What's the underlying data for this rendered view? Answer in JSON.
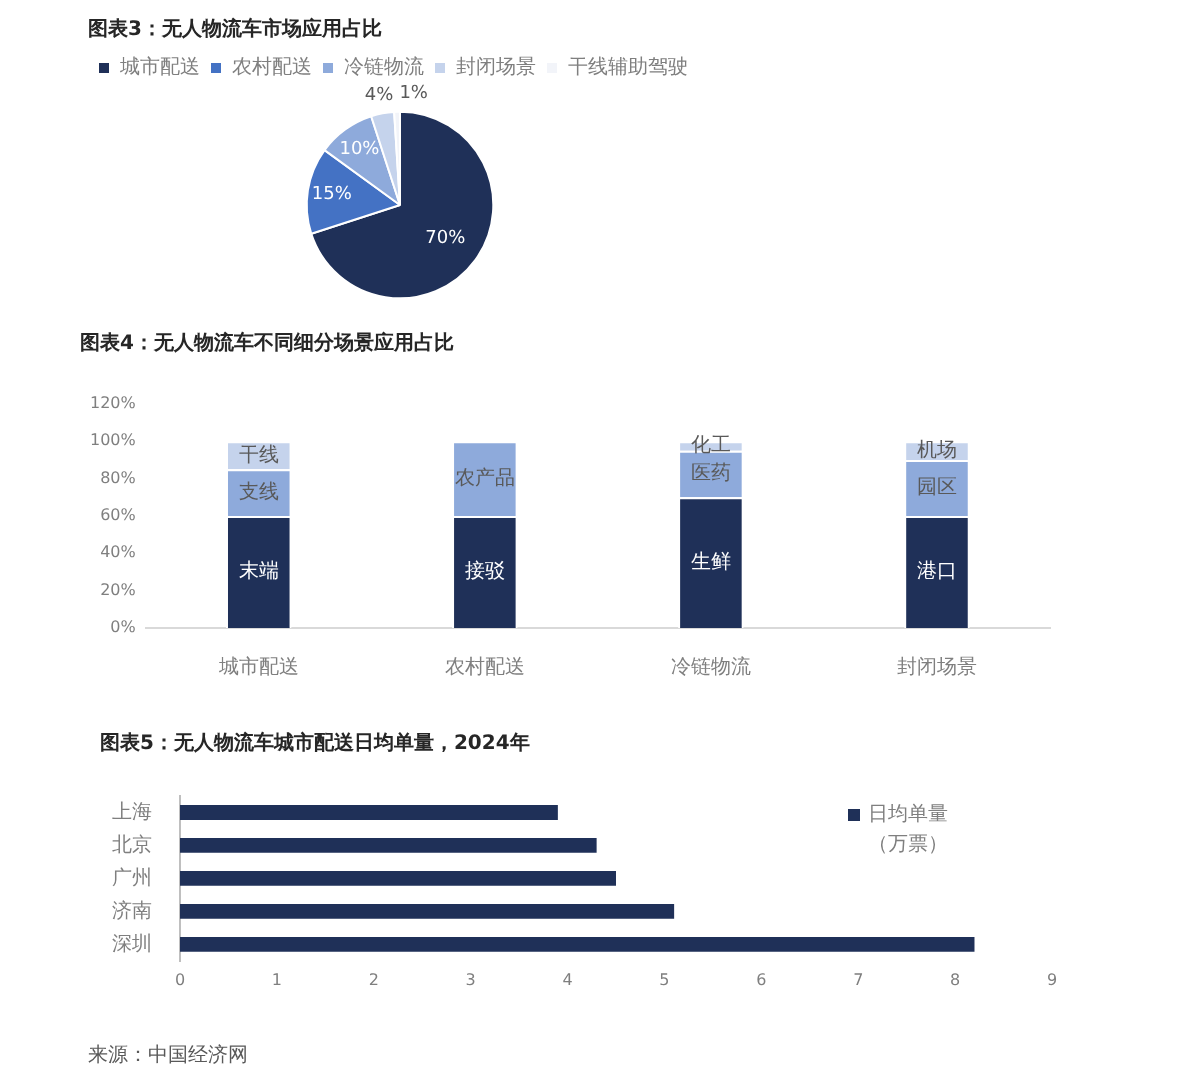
{
  "chart_data": [
    {
      "type": "pie",
      "title": "图表3：无人物流车市场应用占比",
      "categories": [
        "城市配送",
        "农村配送",
        "冷链物流",
        "封闭场景",
        "干线辅助驾驶"
      ],
      "values": [
        70,
        15,
        10,
        4,
        1
      ],
      "colors": [
        "#1f3058",
        "#4472c4",
        "#8eaadb",
        "#c5d3ec",
        "#f2f4f9"
      ],
      "value_labels": [
        "70%",
        "15%",
        "10%",
        "4%",
        "1%"
      ],
      "legend": "top"
    },
    {
      "type": "bar",
      "title": "图表4：无人物流车不同细分场景应用占比",
      "categories": [
        "城市配送",
        "农村配送",
        "冷链物流",
        "封闭场景"
      ],
      "stacked": true,
      "series": [
        {
          "color": "#1f3058",
          "values": [
            60,
            60,
            70,
            60
          ],
          "value_labels": [
            "末端",
            "接驳",
            "生鲜",
            "港口"
          ]
        },
        {
          "color": "#8eaadb",
          "values": [
            25,
            40,
            25,
            30
          ],
          "value_labels": [
            "支线",
            "农产品",
            "医药",
            "园区"
          ]
        },
        {
          "color": "#c5d3ec",
          "values": [
            15,
            null,
            5,
            10
          ],
          "value_labels": [
            "干线",
            null,
            "化工",
            "机场"
          ]
        }
      ],
      "ylim": [
        0,
        120
      ],
      "yticks": [
        {
          "value": 0,
          "label": "0%"
        },
        {
          "value": 20,
          "label": "20%"
        },
        {
          "value": 40,
          "label": "40%"
        },
        {
          "value": 60,
          "label": "60%"
        },
        {
          "value": 80,
          "label": "80%"
        },
        {
          "value": 100,
          "label": "100%"
        },
        {
          "value": 120,
          "label": "120%"
        }
      ]
    },
    {
      "type": "bar",
      "orientation": "horizontal",
      "title": "图表5：无人物流车城市配送日均单量，2024年",
      "categories": [
        "上海",
        "北京",
        "广州",
        "济南",
        "深圳"
      ],
      "series": [
        {
          "name": "日均单量（万票）",
          "color": "#1f3058",
          "values": [
            3.9,
            4.3,
            4.5,
            5.1,
            8.2
          ]
        }
      ],
      "xlim": [
        0,
        9
      ],
      "xticks": [
        0,
        1,
        2,
        3,
        4,
        5,
        6,
        7,
        8,
        9
      ],
      "legend": "top right",
      "annotations": [
        "来源：中国经济网"
      ]
    }
  ]
}
